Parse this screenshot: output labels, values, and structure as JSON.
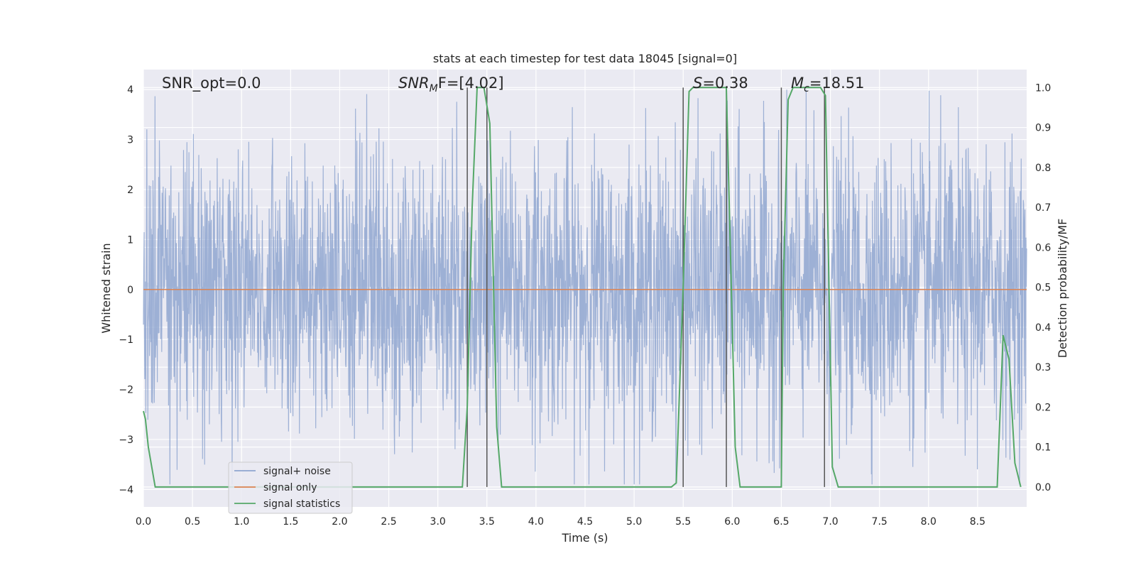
{
  "chart_data": {
    "type": "line",
    "title": "stats at each timestep for test data 18045 [signal=0]",
    "xlabel": "Time (s)",
    "ylabel_left": "Whitened strain",
    "ylabel_right": "Detection probability/MF",
    "xlim": [
      0.0,
      9.0
    ],
    "ylim_left": [
      -4.35,
      4.4
    ],
    "ylim_right": [
      -0.05,
      1.045
    ],
    "xticks": [
      "0.0",
      "0.5",
      "1.0",
      "1.5",
      "2.0",
      "2.5",
      "3.0",
      "3.5",
      "4.0",
      "4.5",
      "5.0",
      "5.5",
      "6.0",
      "6.5",
      "7.0",
      "7.5",
      "8.0",
      "8.5"
    ],
    "yticks_left": [
      "4",
      "3",
      "2",
      "1",
      "0",
      "−1",
      "−2",
      "−3",
      "−4"
    ],
    "yticks_right": [
      "1.0",
      "0.9",
      "0.8",
      "0.7",
      "0.6",
      "0.5",
      "0.4",
      "0.3",
      "0.2",
      "0.1",
      "0.0"
    ],
    "grid": true,
    "legend_position": "lower-left",
    "annotations": {
      "snr_opt": "SNR_opt=0.0",
      "snr_mf_main": "SNR",
      "snr_mf_sub": "M",
      "snr_mf_rest": "F=[4.02]",
      "s_main": "S",
      "s_rest": "=0.38",
      "mc_main": "M",
      "mc_sub": "c",
      "mc_rest": "=18.51"
    },
    "series": [
      {
        "name": "signal+ noise",
        "color": "#8fa6d0",
        "note_style": "dense noisy trace, roughly Gaussian, amplitude up to about ±4",
        "envelope_x": [
          0.0,
          9.0
        ],
        "envelope_y": [
          -1.6,
          1.6
        ]
      },
      {
        "name": "signal only",
        "color": "#dd8452",
        "x": [
          0.0,
          9.0
        ],
        "y": [
          0.0,
          0.0
        ]
      },
      {
        "name": "signal statistics",
        "color": "#55a868",
        "axis": "right",
        "x": [
          0.0,
          0.02,
          0.05,
          0.12,
          3.25,
          3.3,
          3.35,
          3.4,
          3.47,
          3.53,
          3.6,
          3.65,
          5.38,
          5.43,
          5.5,
          5.56,
          5.6,
          5.68,
          5.94,
          5.98,
          6.03,
          6.08,
          6.5,
          6.52,
          6.57,
          6.62,
          6.9,
          6.95,
          7.02,
          7.08,
          8.7,
          8.76,
          8.82,
          8.88,
          8.94
        ],
        "y": [
          0.19,
          0.17,
          0.1,
          0.0,
          0.0,
          0.2,
          0.7,
          1.0,
          1.0,
          0.91,
          0.15,
          0.0,
          0.0,
          0.01,
          0.5,
          0.99,
          1.0,
          1.0,
          1.0,
          0.6,
          0.1,
          0.0,
          0.0,
          0.5,
          0.97,
          1.0,
          1.0,
          0.98,
          0.05,
          0.0,
          0.0,
          0.38,
          0.32,
          0.06,
          0.0
        ]
      }
    ],
    "vertical_lines_x": [
      3.3,
      3.5,
      5.5,
      5.94,
      6.5,
      6.94
    ]
  }
}
